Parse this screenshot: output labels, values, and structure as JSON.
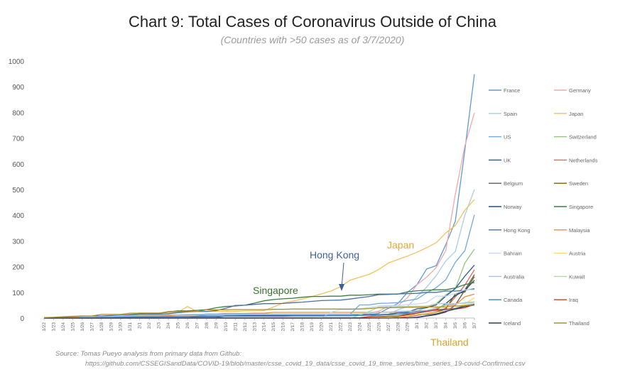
{
  "chart_data": {
    "type": "line",
    "title": "Chart 9: Total Cases of Coronavirus Outside of China",
    "subtitle": "(Countries with >50 cases as of 3/7/2020)",
    "xlabel": "",
    "ylabel": "",
    "ylim": [
      0,
      1000
    ],
    "yticks": [
      0,
      100,
      200,
      300,
      400,
      500,
      600,
      700,
      800,
      900,
      1000
    ],
    "grid": false,
    "legend_position": "right",
    "x": [
      "1/22",
      "1/23",
      "1/24",
      "1/25",
      "1/26",
      "1/27",
      "1/28",
      "1/29",
      "1/30",
      "1/31",
      "2/1",
      "2/2",
      "2/3",
      "2/4",
      "2/5",
      "2/6",
      "2/7",
      "2/8",
      "2/9",
      "2/10",
      "2/11",
      "2/12",
      "2/13",
      "2/14",
      "2/15",
      "2/16",
      "2/17",
      "2/18",
      "2/19",
      "2/20",
      "2/21",
      "2/22",
      "2/23",
      "2/24",
      "2/25",
      "2/26",
      "2/27",
      "2/28",
      "2/29",
      "3/1",
      "3/2",
      "3/3",
      "3/4",
      "3/5",
      "3/6",
      "3/7"
    ],
    "series": [
      {
        "name": "France",
        "color": "#5b9bd5",
        "values": [
          0,
          0,
          2,
          3,
          3,
          3,
          4,
          5,
          5,
          6,
          6,
          6,
          6,
          6,
          6,
          6,
          6,
          11,
          11,
          11,
          11,
          11,
          11,
          11,
          12,
          12,
          12,
          12,
          12,
          12,
          12,
          12,
          12,
          12,
          14,
          18,
          38,
          57,
          100,
          130,
          191,
          204,
          285,
          377,
          653,
          949
        ]
      },
      {
        "name": "Germany",
        "color": "#f4a8a8",
        "values": [
          0,
          0,
          0,
          0,
          0,
          1,
          4,
          4,
          4,
          5,
          8,
          10,
          12,
          12,
          12,
          12,
          13,
          13,
          14,
          14,
          16,
          16,
          16,
          16,
          16,
          16,
          16,
          16,
          16,
          16,
          16,
          16,
          16,
          16,
          17,
          27,
          46,
          48,
          79,
          130,
          159,
          196,
          262,
          482,
          670,
          799
        ]
      },
      {
        "name": "Spain",
        "color": "#a9cce3",
        "values": [
          0,
          0,
          0,
          0,
          0,
          0,
          0,
          0,
          0,
          0,
          1,
          1,
          1,
          1,
          1,
          1,
          1,
          1,
          2,
          2,
          2,
          2,
          2,
          2,
          2,
          2,
          2,
          2,
          2,
          2,
          2,
          2,
          2,
          2,
          6,
          13,
          15,
          32,
          45,
          84,
          120,
          165,
          222,
          259,
          400,
          500
        ]
      },
      {
        "name": "Japan",
        "color": "#f1c35a",
        "values": [
          2,
          2,
          2,
          2,
          4,
          4,
          7,
          7,
          11,
          15,
          20,
          20,
          20,
          22,
          22,
          45,
          25,
          25,
          26,
          26,
          26,
          28,
          28,
          29,
          43,
          59,
          66,
          74,
          84,
          94,
          105,
          122,
          147,
          159,
          170,
          189,
          214,
          228,
          241,
          256,
          274,
          293,
          331,
          360,
          420,
          461
        ]
      },
      {
        "name": "US",
        "color": "#6fa8dc",
        "values": [
          1,
          1,
          2,
          2,
          5,
          5,
          5,
          5,
          5,
          7,
          8,
          8,
          11,
          11,
          11,
          11,
          11,
          11,
          11,
          11,
          12,
          12,
          13,
          13,
          13,
          13,
          13,
          13,
          13,
          13,
          15,
          15,
          15,
          51,
          51,
          57,
          58,
          60,
          68,
          74,
          98,
          118,
          149,
          217,
          262,
          402
        ]
      },
      {
        "name": "Switzerland",
        "color": "#93c47d",
        "values": [
          0,
          0,
          0,
          0,
          0,
          0,
          0,
          0,
          0,
          0,
          0,
          0,
          0,
          0,
          0,
          0,
          0,
          0,
          0,
          0,
          0,
          0,
          0,
          0,
          0,
          0,
          0,
          0,
          0,
          0,
          0,
          0,
          0,
          0,
          1,
          1,
          8,
          8,
          18,
          27,
          42,
          56,
          90,
          114,
          214,
          268
        ]
      },
      {
        "name": "UK",
        "color": "#2e5597",
        "values": [
          0,
          0,
          0,
          0,
          0,
          0,
          0,
          0,
          0,
          2,
          2,
          2,
          2,
          2,
          2,
          2,
          3,
          3,
          3,
          8,
          8,
          9,
          9,
          9,
          9,
          9,
          9,
          9,
          9,
          9,
          9,
          9,
          9,
          13,
          13,
          13,
          15,
          20,
          23,
          36,
          40,
          51,
          85,
          115,
          163,
          206
        ]
      },
      {
        "name": "Netherlands",
        "color": "#e06666",
        "values": [
          0,
          0,
          0,
          0,
          0,
          0,
          0,
          0,
          0,
          0,
          0,
          0,
          0,
          0,
          0,
          0,
          0,
          0,
          0,
          0,
          0,
          0,
          0,
          0,
          0,
          0,
          0,
          0,
          0,
          0,
          0,
          0,
          0,
          0,
          0,
          0,
          1,
          1,
          6,
          10,
          18,
          24,
          38,
          82,
          128,
          188
        ]
      },
      {
        "name": "Belgium",
        "color": "#595959",
        "values": [
          0,
          0,
          0,
          0,
          0,
          0,
          0,
          0,
          0,
          0,
          0,
          0,
          0,
          0,
          1,
          1,
          1,
          1,
          1,
          1,
          1,
          1,
          1,
          1,
          1,
          1,
          1,
          1,
          1,
          1,
          1,
          1,
          1,
          1,
          1,
          1,
          1,
          1,
          1,
          2,
          8,
          13,
          23,
          50,
          109,
          169
        ]
      },
      {
        "name": "Sweden",
        "color": "#7f6000",
        "values": [
          0,
          0,
          0,
          0,
          0,
          0,
          0,
          0,
          0,
          1,
          1,
          1,
          1,
          1,
          1,
          1,
          1,
          1,
          1,
          1,
          1,
          1,
          1,
          1,
          1,
          1,
          1,
          1,
          1,
          1,
          1,
          1,
          1,
          1,
          1,
          2,
          7,
          7,
          12,
          14,
          15,
          21,
          35,
          94,
          101,
          161
        ]
      },
      {
        "name": "Norway",
        "color": "#1f4e79",
        "values": [
          0,
          0,
          0,
          0,
          0,
          0,
          0,
          0,
          0,
          0,
          0,
          0,
          0,
          0,
          0,
          0,
          0,
          0,
          0,
          0,
          0,
          0,
          0,
          0,
          0,
          0,
          0,
          0,
          0,
          0,
          0,
          0,
          0,
          0,
          0,
          1,
          1,
          6,
          15,
          19,
          25,
          32,
          56,
          87,
          108,
          147
        ]
      },
      {
        "name": "Singapore",
        "color": "#3a7d44",
        "values": [
          0,
          1,
          3,
          3,
          4,
          5,
          7,
          7,
          10,
          13,
          16,
          18,
          18,
          24,
          28,
          28,
          30,
          33,
          40,
          45,
          47,
          50,
          58,
          67,
          72,
          75,
          77,
          81,
          84,
          84,
          85,
          85,
          89,
          89,
          91,
          93,
          93,
          93,
          102,
          106,
          108,
          110,
          110,
          117,
          130,
          138
        ]
      },
      {
        "name": "Hong Kong",
        "color": "#4a6fa5",
        "values": [
          0,
          2,
          2,
          5,
          8,
          8,
          8,
          10,
          10,
          12,
          13,
          15,
          15,
          17,
          21,
          24,
          25,
          26,
          29,
          38,
          49,
          50,
          53,
          56,
          56,
          57,
          60,
          62,
          65,
          68,
          69,
          70,
          74,
          79,
          84,
          91,
          92,
          94,
          95,
          96,
          100,
          100,
          105,
          105,
          108,
          114
        ]
      },
      {
        "name": "Malaysia",
        "color": "#e69138",
        "values": [
          0,
          0,
          0,
          3,
          4,
          4,
          4,
          7,
          8,
          8,
          8,
          8,
          8,
          10,
          12,
          12,
          12,
          16,
          16,
          18,
          18,
          18,
          19,
          19,
          22,
          22,
          22,
          22,
          22,
          22,
          22,
          22,
          22,
          22,
          22,
          22,
          23,
          23,
          25,
          29,
          29,
          36,
          50,
          50,
          83,
          93
        ]
      },
      {
        "name": "Bahrain",
        "color": "#c9daf8",
        "values": [
          0,
          0,
          0,
          0,
          0,
          0,
          0,
          0,
          0,
          0,
          0,
          0,
          0,
          0,
          0,
          0,
          0,
          0,
          0,
          0,
          0,
          0,
          0,
          0,
          0,
          0,
          0,
          0,
          0,
          1,
          23,
          33,
          33,
          36,
          41,
          47,
          49,
          49,
          52,
          55,
          60,
          85,
          85,
          95,
          110,
          110
        ]
      },
      {
        "name": "Austria",
        "color": "#ffd966",
        "values": [
          0,
          0,
          0,
          0,
          0,
          0,
          0,
          0,
          0,
          0,
          0,
          0,
          0,
          0,
          0,
          0,
          0,
          0,
          0,
          0,
          0,
          0,
          0,
          0,
          0,
          0,
          0,
          0,
          0,
          0,
          0,
          0,
          0,
          0,
          2,
          2,
          3,
          3,
          9,
          14,
          18,
          21,
          29,
          41,
          55,
          79
        ]
      },
      {
        "name": "Australia",
        "color": "#9fc5e8",
        "values": [
          0,
          0,
          0,
          0,
          4,
          5,
          5,
          6,
          9,
          9,
          12,
          12,
          12,
          13,
          13,
          14,
          15,
          15,
          15,
          15,
          15,
          15,
          15,
          15,
          15,
          15,
          15,
          15,
          15,
          15,
          15,
          15,
          15,
          15,
          22,
          23,
          23,
          25,
          27,
          27,
          30,
          39,
          52,
          55,
          60,
          63
        ]
      },
      {
        "name": "Kuwait",
        "color": "#b6d7a8",
        "values": [
          0,
          0,
          0,
          0,
          0,
          0,
          0,
          0,
          0,
          0,
          0,
          0,
          0,
          0,
          0,
          0,
          0,
          0,
          0,
          0,
          0,
          0,
          0,
          0,
          0,
          0,
          0,
          0,
          0,
          0,
          0,
          0,
          0,
          11,
          26,
          43,
          45,
          45,
          45,
          46,
          46,
          56,
          56,
          56,
          58,
          58
        ]
      },
      {
        "name": "Canada",
        "color": "#4f81bd",
        "values": [
          0,
          0,
          0,
          0,
          1,
          1,
          2,
          2,
          2,
          4,
          4,
          4,
          4,
          5,
          5,
          5,
          7,
          7,
          7,
          7,
          7,
          7,
          7,
          7,
          7,
          7,
          8,
          8,
          8,
          8,
          9,
          9,
          9,
          10,
          11,
          11,
          13,
          14,
          20,
          24,
          27,
          30,
          33,
          37,
          49,
          54
        ]
      },
      {
        "name": "Iraq",
        "color": "#cc4125",
        "values": [
          0,
          0,
          0,
          0,
          0,
          0,
          0,
          0,
          0,
          0,
          0,
          0,
          0,
          0,
          0,
          0,
          0,
          0,
          0,
          0,
          0,
          0,
          0,
          0,
          0,
          0,
          0,
          0,
          0,
          0,
          0,
          0,
          0,
          1,
          5,
          6,
          7,
          7,
          13,
          19,
          26,
          32,
          35,
          35,
          40,
          54
        ]
      },
      {
        "name": "Iceland",
        "color": "#2b3a67",
        "values": [
          0,
          0,
          0,
          0,
          0,
          0,
          0,
          0,
          0,
          0,
          0,
          0,
          0,
          0,
          0,
          0,
          0,
          0,
          0,
          0,
          0,
          0,
          0,
          0,
          0,
          0,
          0,
          0,
          0,
          0,
          0,
          0,
          0,
          0,
          0,
          0,
          0,
          1,
          1,
          3,
          9,
          16,
          26,
          35,
          45,
          50
        ]
      },
      {
        "name": "Thailand",
        "color": "#b08d2c",
        "values": [
          2,
          3,
          5,
          7,
          8,
          8,
          14,
          14,
          14,
          19,
          19,
          19,
          19,
          25,
          25,
          25,
          25,
          32,
          32,
          32,
          33,
          33,
          33,
          33,
          34,
          34,
          35,
          35,
          35,
          35,
          35,
          35,
          35,
          35,
          37,
          40,
          40,
          41,
          42,
          42,
          43,
          43,
          43,
          47,
          48,
          50
        ]
      }
    ],
    "annotations": [
      {
        "text": "Japan",
        "color": "#e1a83a"
      },
      {
        "text": "Hong Kong",
        "color": "#3f5f9b"
      },
      {
        "text": "Singapore",
        "color": "#3a6e2e"
      },
      {
        "text": "Thailand",
        "color": "#d6a431"
      }
    ]
  },
  "source": {
    "line1": "Source: Tomas Pueyo analysis from primary data from Github:",
    "line2": "https://github.com/CSSEGISandData/COVID-19/blob/master/csse_covid_19_data/csse_covid_19_time_series/time_series_19-covid-Confirmed.csv"
  }
}
